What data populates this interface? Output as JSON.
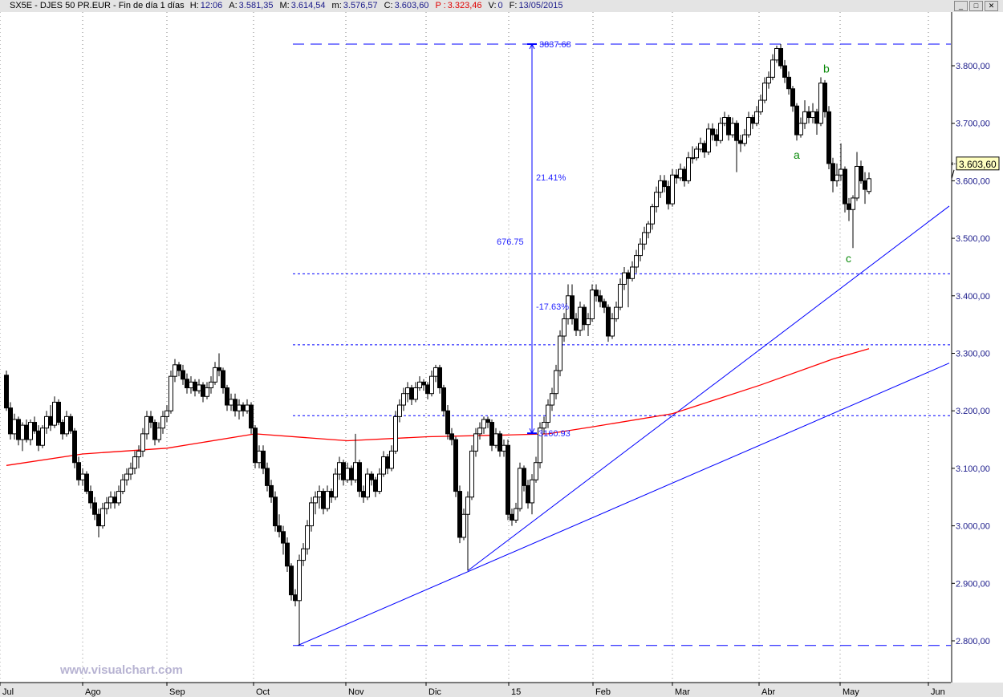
{
  "header": {
    "title": "SX5E - DJES 50 PR.EUR - Fin de día 1 días",
    "fields": [
      {
        "label": "H:",
        "value": "12:06"
      },
      {
        "label": "A:",
        "value": "3.581,35"
      },
      {
        "label": "M:",
        "value": "3.614,54"
      },
      {
        "label": "m:",
        "value": "3.576,57"
      },
      {
        "label": "C:",
        "value": "3.603,60"
      },
      {
        "label": "P :",
        "value": "3.323,46",
        "color": "#e00000"
      },
      {
        "label": "V:",
        "value": "0"
      },
      {
        "label": "F:",
        "value": "13/05/2015"
      }
    ],
    "window_buttons": [
      "minimize-icon",
      "maximize-icon",
      "close-icon"
    ]
  },
  "watermark": "www.visualchart.com",
  "chart_data": {
    "type": "candlestick",
    "ylim": [
      2729,
      3895
    ],
    "y_ticks": [
      "2.800,00",
      "2.900,00",
      "3.000,00",
      "3.100,00",
      "3.200,00",
      "3.300,00",
      "3.400,00",
      "3.500,00",
      "3.600,00",
      "3.700,00",
      "3.800,00",
      "3.900,00"
    ],
    "y_tick_values": [
      2800,
      2900,
      3000,
      3100,
      3200,
      3300,
      3400,
      3500,
      3600,
      3700,
      3800,
      3900
    ],
    "x_ticks": [
      {
        "label": "Jul",
        "bar": -1.6
      },
      {
        "label": "Ago",
        "bar": 19
      },
      {
        "label": "Sep",
        "bar": 40
      },
      {
        "label": "Oct",
        "bar": 61.6
      },
      {
        "label": "Nov",
        "bar": 84.6
      },
      {
        "label": "Dic",
        "bar": 104.6
      },
      {
        "label": "15",
        "bar": 125.2
      },
      {
        "label": "Feb",
        "bar": 146.2
      },
      {
        "label": "Mar",
        "bar": 166
      },
      {
        "label": "Abr",
        "bar": 187.6
      },
      {
        "label": "May",
        "bar": 207.8
      },
      {
        "label": "Jun",
        "bar": 229.8
      }
    ],
    "grid": "vertical dotted at month ticks",
    "last_price_label": "3.603,60",
    "last_price": 3603.6,
    "colors": {
      "up": "#ffffff",
      "down": "#000000",
      "ma": "#ff0000",
      "drawings": "#0000ff",
      "wave_labels": "#0a8a0a"
    },
    "ohlc": [
      [
        3262,
        3270,
        3200,
        3205
      ],
      [
        3205,
        3215,
        3150,
        3160
      ],
      [
        3160,
        3195,
        3150,
        3185
      ],
      [
        3185,
        3190,
        3140,
        3150
      ],
      [
        3150,
        3180,
        3130,
        3175
      ],
      [
        3175,
        3185,
        3145,
        3150
      ],
      [
        3150,
        3185,
        3140,
        3180
      ],
      [
        3180,
        3190,
        3160,
        3165
      ],
      [
        3165,
        3175,
        3130,
        3140
      ],
      [
        3140,
        3175,
        3135,
        3170
      ],
      [
        3170,
        3200,
        3160,
        3190
      ],
      [
        3190,
        3210,
        3165,
        3175
      ],
      [
        3175,
        3225,
        3170,
        3215
      ],
      [
        3215,
        3220,
        3175,
        3180
      ],
      [
        3180,
        3185,
        3150,
        3160
      ],
      [
        3160,
        3200,
        3155,
        3190
      ],
      [
        3190,
        3195,
        3160,
        3165
      ],
      [
        3165,
        3170,
        3100,
        3110
      ],
      [
        3110,
        3120,
        3070,
        3080
      ],
      [
        3080,
        3100,
        3070,
        3090
      ],
      [
        3090,
        3095,
        3055,
        3060
      ],
      [
        3060,
        3070,
        3030,
        3040
      ],
      [
        3040,
        3050,
        3010,
        3020
      ],
      [
        3020,
        3030,
        2980,
        3000
      ],
      [
        3000,
        3040,
        2995,
        3030
      ],
      [
        3030,
        3050,
        3020,
        3040
      ],
      [
        3040,
        3060,
        3030,
        3050
      ],
      [
        3050,
        3060,
        3030,
        3040
      ],
      [
        3040,
        3070,
        3035,
        3060
      ],
      [
        3060,
        3090,
        3055,
        3080
      ],
      [
        3080,
        3100,
        3070,
        3090
      ],
      [
        3090,
        3110,
        3080,
        3100
      ],
      [
        3100,
        3130,
        3090,
        3120
      ],
      [
        3120,
        3140,
        3100,
        3130
      ],
      [
        3130,
        3170,
        3120,
        3160
      ],
      [
        3160,
        3200,
        3150,
        3190
      ],
      [
        3190,
        3200,
        3170,
        3180
      ],
      [
        3180,
        3185,
        3140,
        3150
      ],
      [
        3150,
        3180,
        3145,
        3170
      ],
      [
        3170,
        3200,
        3160,
        3190
      ],
      [
        3190,
        3210,
        3180,
        3200
      ],
      [
        3200,
        3270,
        3195,
        3260
      ],
      [
        3260,
        3290,
        3250,
        3280
      ],
      [
        3280,
        3285,
        3260,
        3270
      ],
      [
        3270,
        3280,
        3245,
        3255
      ],
      [
        3255,
        3265,
        3230,
        3240
      ],
      [
        3240,
        3260,
        3230,
        3250
      ],
      [
        3250,
        3255,
        3225,
        3235
      ],
      [
        3235,
        3255,
        3230,
        3245
      ],
      [
        3245,
        3250,
        3215,
        3225
      ],
      [
        3225,
        3250,
        3220,
        3240
      ],
      [
        3240,
        3260,
        3230,
        3250
      ],
      [
        3250,
        3285,
        3245,
        3275
      ],
      [
        3275,
        3300,
        3260,
        3270
      ],
      [
        3270,
        3275,
        3230,
        3240
      ],
      [
        3240,
        3245,
        3200,
        3210
      ],
      [
        3210,
        3230,
        3200,
        3220
      ],
      [
        3220,
        3230,
        3190,
        3200
      ],
      [
        3200,
        3220,
        3185,
        3210
      ],
      [
        3210,
        3215,
        3190,
        3200
      ],
      [
        3200,
        3220,
        3195,
        3210
      ],
      [
        3210,
        3215,
        3160,
        3170
      ],
      [
        3170,
        3175,
        3100,
        3110
      ],
      [
        3110,
        3140,
        3100,
        3130
      ],
      [
        3130,
        3140,
        3090,
        3100
      ],
      [
        3100,
        3110,
        3060,
        3070
      ],
      [
        3070,
        3080,
        3040,
        3050
      ],
      [
        3050,
        3060,
        2990,
        3000
      ],
      [
        3000,
        3020,
        2980,
        2990
      ],
      [
        2990,
        3000,
        2950,
        2970
      ],
      [
        2970,
        2980,
        2920,
        2930
      ],
      [
        2930,
        2935,
        2870,
        2880
      ],
      [
        2880,
        2890,
        2860,
        2870
      ],
      [
        2870,
        2950,
        2792,
        2940
      ],
      [
        2940,
        2970,
        2930,
        2960
      ],
      [
        2960,
        3010,
        2950,
        3000
      ],
      [
        3000,
        3050,
        2990,
        3040
      ],
      [
        3040,
        3060,
        3020,
        3050
      ],
      [
        3050,
        3070,
        3030,
        3060
      ],
      [
        3060,
        3065,
        3020,
        3030
      ],
      [
        3030,
        3070,
        3025,
        3060
      ],
      [
        3060,
        3065,
        3040,
        3050
      ],
      [
        3050,
        3100,
        3045,
        3090
      ],
      [
        3090,
        3120,
        3080,
        3110
      ],
      [
        3110,
        3115,
        3070,
        3080
      ],
      [
        3080,
        3110,
        3075,
        3100
      ],
      [
        3100,
        3105,
        3070,
        3080
      ],
      [
        3080,
        3160,
        3075,
        3110
      ],
      [
        3110,
        3115,
        3050,
        3060
      ],
      [
        3060,
        3070,
        3040,
        3050
      ],
      [
        3050,
        3100,
        3045,
        3090
      ],
      [
        3090,
        3095,
        3070,
        3080
      ],
      [
        3080,
        3085,
        3050,
        3060
      ],
      [
        3060,
        3100,
        3055,
        3090
      ],
      [
        3090,
        3130,
        3085,
        3120
      ],
      [
        3120,
        3125,
        3090,
        3100
      ],
      [
        3100,
        3140,
        3095,
        3130
      ],
      [
        3130,
        3200,
        3125,
        3190
      ],
      [
        3190,
        3220,
        3180,
        3210
      ],
      [
        3210,
        3240,
        3200,
        3230
      ],
      [
        3230,
        3250,
        3215,
        3240
      ],
      [
        3240,
        3245,
        3210,
        3220
      ],
      [
        3220,
        3250,
        3215,
        3240
      ],
      [
        3240,
        3260,
        3235,
        3250
      ],
      [
        3250,
        3255,
        3235,
        3245
      ],
      [
        3245,
        3250,
        3220,
        3230
      ],
      [
        3230,
        3270,
        3225,
        3260
      ],
      [
        3260,
        3280,
        3250,
        3275
      ],
      [
        3275,
        3280,
        3230,
        3240
      ],
      [
        3240,
        3245,
        3190,
        3200
      ],
      [
        3200,
        3210,
        3150,
        3160
      ],
      [
        3160,
        3170,
        3140,
        3150
      ],
      [
        3150,
        3155,
        3050,
        3060
      ],
      [
        3060,
        3070,
        2970,
        2980
      ],
      [
        2980,
        3030,
        2975,
        3020
      ],
      [
        3020,
        3060,
        2922,
        3050
      ],
      [
        3050,
        3140,
        3045,
        3130
      ],
      [
        3130,
        3170,
        3120,
        3160
      ],
      [
        3160,
        3180,
        3150,
        3170
      ],
      [
        3170,
        3190,
        3160,
        3185
      ],
      [
        3185,
        3190,
        3170,
        3180
      ],
      [
        3180,
        3185,
        3130,
        3140
      ],
      [
        3140,
        3170,
        3135,
        3160
      ],
      [
        3160,
        3165,
        3120,
        3130
      ],
      [
        3130,
        3150,
        3120,
        3140
      ],
      [
        3140,
        3150,
        3010,
        3020
      ],
      [
        3020,
        3030,
        3000,
        3010
      ],
      [
        3010,
        3040,
        3005,
        3030
      ],
      [
        3030,
        3110,
        3025,
        3100
      ],
      [
        3100,
        3105,
        3060,
        3070
      ],
      [
        3070,
        3080,
        3030,
        3040
      ],
      [
        3040,
        3090,
        3020,
        3080
      ],
      [
        3080,
        3120,
        3075,
        3110
      ],
      [
        3110,
        3180,
        3100,
        3170
      ],
      [
        3170,
        3190,
        3160,
        3180
      ],
      [
        3180,
        3220,
        3170,
        3210
      ],
      [
        3210,
        3240,
        3200,
        3230
      ],
      [
        3230,
        3280,
        3220,
        3270
      ],
      [
        3270,
        3340,
        3260,
        3330
      ],
      [
        3330,
        3370,
        3320,
        3360
      ],
      [
        3360,
        3420,
        3350,
        3400
      ],
      [
        3400,
        3420,
        3350,
        3360
      ],
      [
        3360,
        3370,
        3330,
        3340
      ],
      [
        3340,
        3390,
        3330,
        3380
      ],
      [
        3380,
        3385,
        3340,
        3350
      ],
      [
        3350,
        3370,
        3330,
        3360
      ],
      [
        3360,
        3420,
        3355,
        3410
      ],
      [
        3410,
        3420,
        3390,
        3400
      ],
      [
        3400,
        3410,
        3380,
        3390
      ],
      [
        3390,
        3395,
        3370,
        3380
      ],
      [
        3380,
        3385,
        3320,
        3330
      ],
      [
        3330,
        3370,
        3325,
        3360
      ],
      [
        3360,
        3390,
        3355,
        3380
      ],
      [
        3380,
        3430,
        3375,
        3420
      ],
      [
        3420,
        3450,
        3410,
        3440
      ],
      [
        3440,
        3445,
        3380,
        3430
      ],
      [
        3430,
        3460,
        3425,
        3450
      ],
      [
        3450,
        3480,
        3440,
        3470
      ],
      [
        3470,
        3500,
        3460,
        3490
      ],
      [
        3490,
        3520,
        3480,
        3510
      ],
      [
        3510,
        3530,
        3500,
        3525
      ],
      [
        3525,
        3560,
        3515,
        3555
      ],
      [
        3555,
        3590,
        3545,
        3580
      ],
      [
        3580,
        3610,
        3570,
        3600
      ],
      [
        3600,
        3610,
        3580,
        3590
      ],
      [
        3590,
        3600,
        3550,
        3560
      ],
      [
        3560,
        3620,
        3555,
        3610
      ],
      [
        3610,
        3620,
        3595,
        3605
      ],
      [
        3605,
        3630,
        3600,
        3620
      ],
      [
        3620,
        3625,
        3590,
        3600
      ],
      [
        3600,
        3650,
        3595,
        3640
      ],
      [
        3640,
        3660,
        3630,
        3640
      ],
      [
        3640,
        3660,
        3635,
        3655
      ],
      [
        3655,
        3675,
        3650,
        3665
      ],
      [
        3665,
        3670,
        3640,
        3650
      ],
      [
        3650,
        3700,
        3645,
        3690
      ],
      [
        3690,
        3700,
        3670,
        3680
      ],
      [
        3680,
        3690,
        3660,
        3670
      ],
      [
        3670,
        3710,
        3665,
        3700
      ],
      [
        3700,
        3720,
        3695,
        3710
      ],
      [
        3710,
        3715,
        3670,
        3680
      ],
      [
        3680,
        3710,
        3675,
        3700
      ],
      [
        3700,
        3705,
        3615,
        3670
      ],
      [
        3670,
        3680,
        3650,
        3665
      ],
      [
        3665,
        3690,
        3660,
        3680
      ],
      [
        3680,
        3720,
        3675,
        3710
      ],
      [
        3710,
        3715,
        3690,
        3700
      ],
      [
        3700,
        3730,
        3695,
        3720
      ],
      [
        3720,
        3750,
        3715,
        3740
      ],
      [
        3740,
        3780,
        3735,
        3770
      ],
      [
        3770,
        3790,
        3760,
        3780
      ],
      [
        3780,
        3820,
        3775,
        3810
      ],
      [
        3810,
        3835,
        3805,
        3830
      ],
      [
        3830,
        3837.68,
        3795,
        3800
      ],
      [
        3800,
        3810,
        3770,
        3780
      ],
      [
        3780,
        3790,
        3750,
        3760
      ],
      [
        3760,
        3765,
        3720,
        3730
      ],
      [
        3730,
        3735,
        3670,
        3680
      ],
      [
        3680,
        3710,
        3675,
        3700
      ],
      [
        3700,
        3740,
        3690,
        3720
      ],
      [
        3720,
        3730,
        3700,
        3710
      ],
      [
        3710,
        3735,
        3700,
        3720
      ],
      [
        3720,
        3725,
        3680,
        3700
      ],
      [
        3700,
        3780,
        3695,
        3770
      ],
      [
        3770,
        3775,
        3710,
        3720
      ],
      [
        3720,
        3730,
        3620,
        3630
      ],
      [
        3630,
        3640,
        3580,
        3600
      ],
      [
        3600,
        3630,
        3590,
        3610
      ],
      [
        3610,
        3665,
        3600,
        3620
      ],
      [
        3620,
        3625,
        3545,
        3560
      ],
      [
        3560,
        3570,
        3530,
        3550
      ],
      [
        3550,
        3575,
        3483,
        3570
      ],
      [
        3570,
        3650,
        3565,
        3625
      ],
      [
        3625,
        3635,
        3595,
        3600
      ],
      [
        3600,
        3615,
        3560,
        3585
      ],
      [
        3581.35,
        3614.54,
        3576.57,
        3603.6
      ]
    ],
    "moving_average": [
      [
        0,
        3105
      ],
      [
        19,
        3125
      ],
      [
        40,
        3135
      ],
      [
        62,
        3160
      ],
      [
        85,
        3148
      ],
      [
        105,
        3155
      ],
      [
        125,
        3158
      ],
      [
        135,
        3160
      ],
      [
        146,
        3172
      ],
      [
        166,
        3195
      ],
      [
        188,
        3245
      ],
      [
        206,
        3290
      ],
      [
        215,
        3308
      ]
    ],
    "horizontal_levels": [
      {
        "price": 3837.68,
        "style": "long-dash",
        "from_bar": 71.4
      },
      {
        "price": 3438.2,
        "style": "dotted",
        "from_bar": 71.4
      },
      {
        "price": 3314.8,
        "style": "dotted",
        "from_bar": 71.4
      },
      {
        "price": 3191.5,
        "style": "dotted",
        "from_bar": 71.4
      },
      {
        "price": 2791.9,
        "style": "long-dash",
        "from_bar": 71.4
      }
    ],
    "trendlines": [
      {
        "from": [
          72.6,
          2792
        ],
        "to": [
          235,
          3283
        ]
      },
      {
        "from": [
          115,
          2922
        ],
        "to": [
          235,
          3556
        ]
      }
    ],
    "measure": {
      "bar": 131,
      "from_price": 3160.93,
      "to_price": 3837.68,
      "top_label": "3837.68",
      "bottom_label": "3160.93",
      "pct_up": "21.41%",
      "diff": "676.75",
      "pct_down": "-17.63%"
    },
    "wave_labels": [
      {
        "text": "a",
        "bar": 197,
        "price": 3645
      },
      {
        "text": "b",
        "bar": 204.4,
        "price": 3795
      },
      {
        "text": "c",
        "bar": 210,
        "price": 3465
      }
    ]
  }
}
